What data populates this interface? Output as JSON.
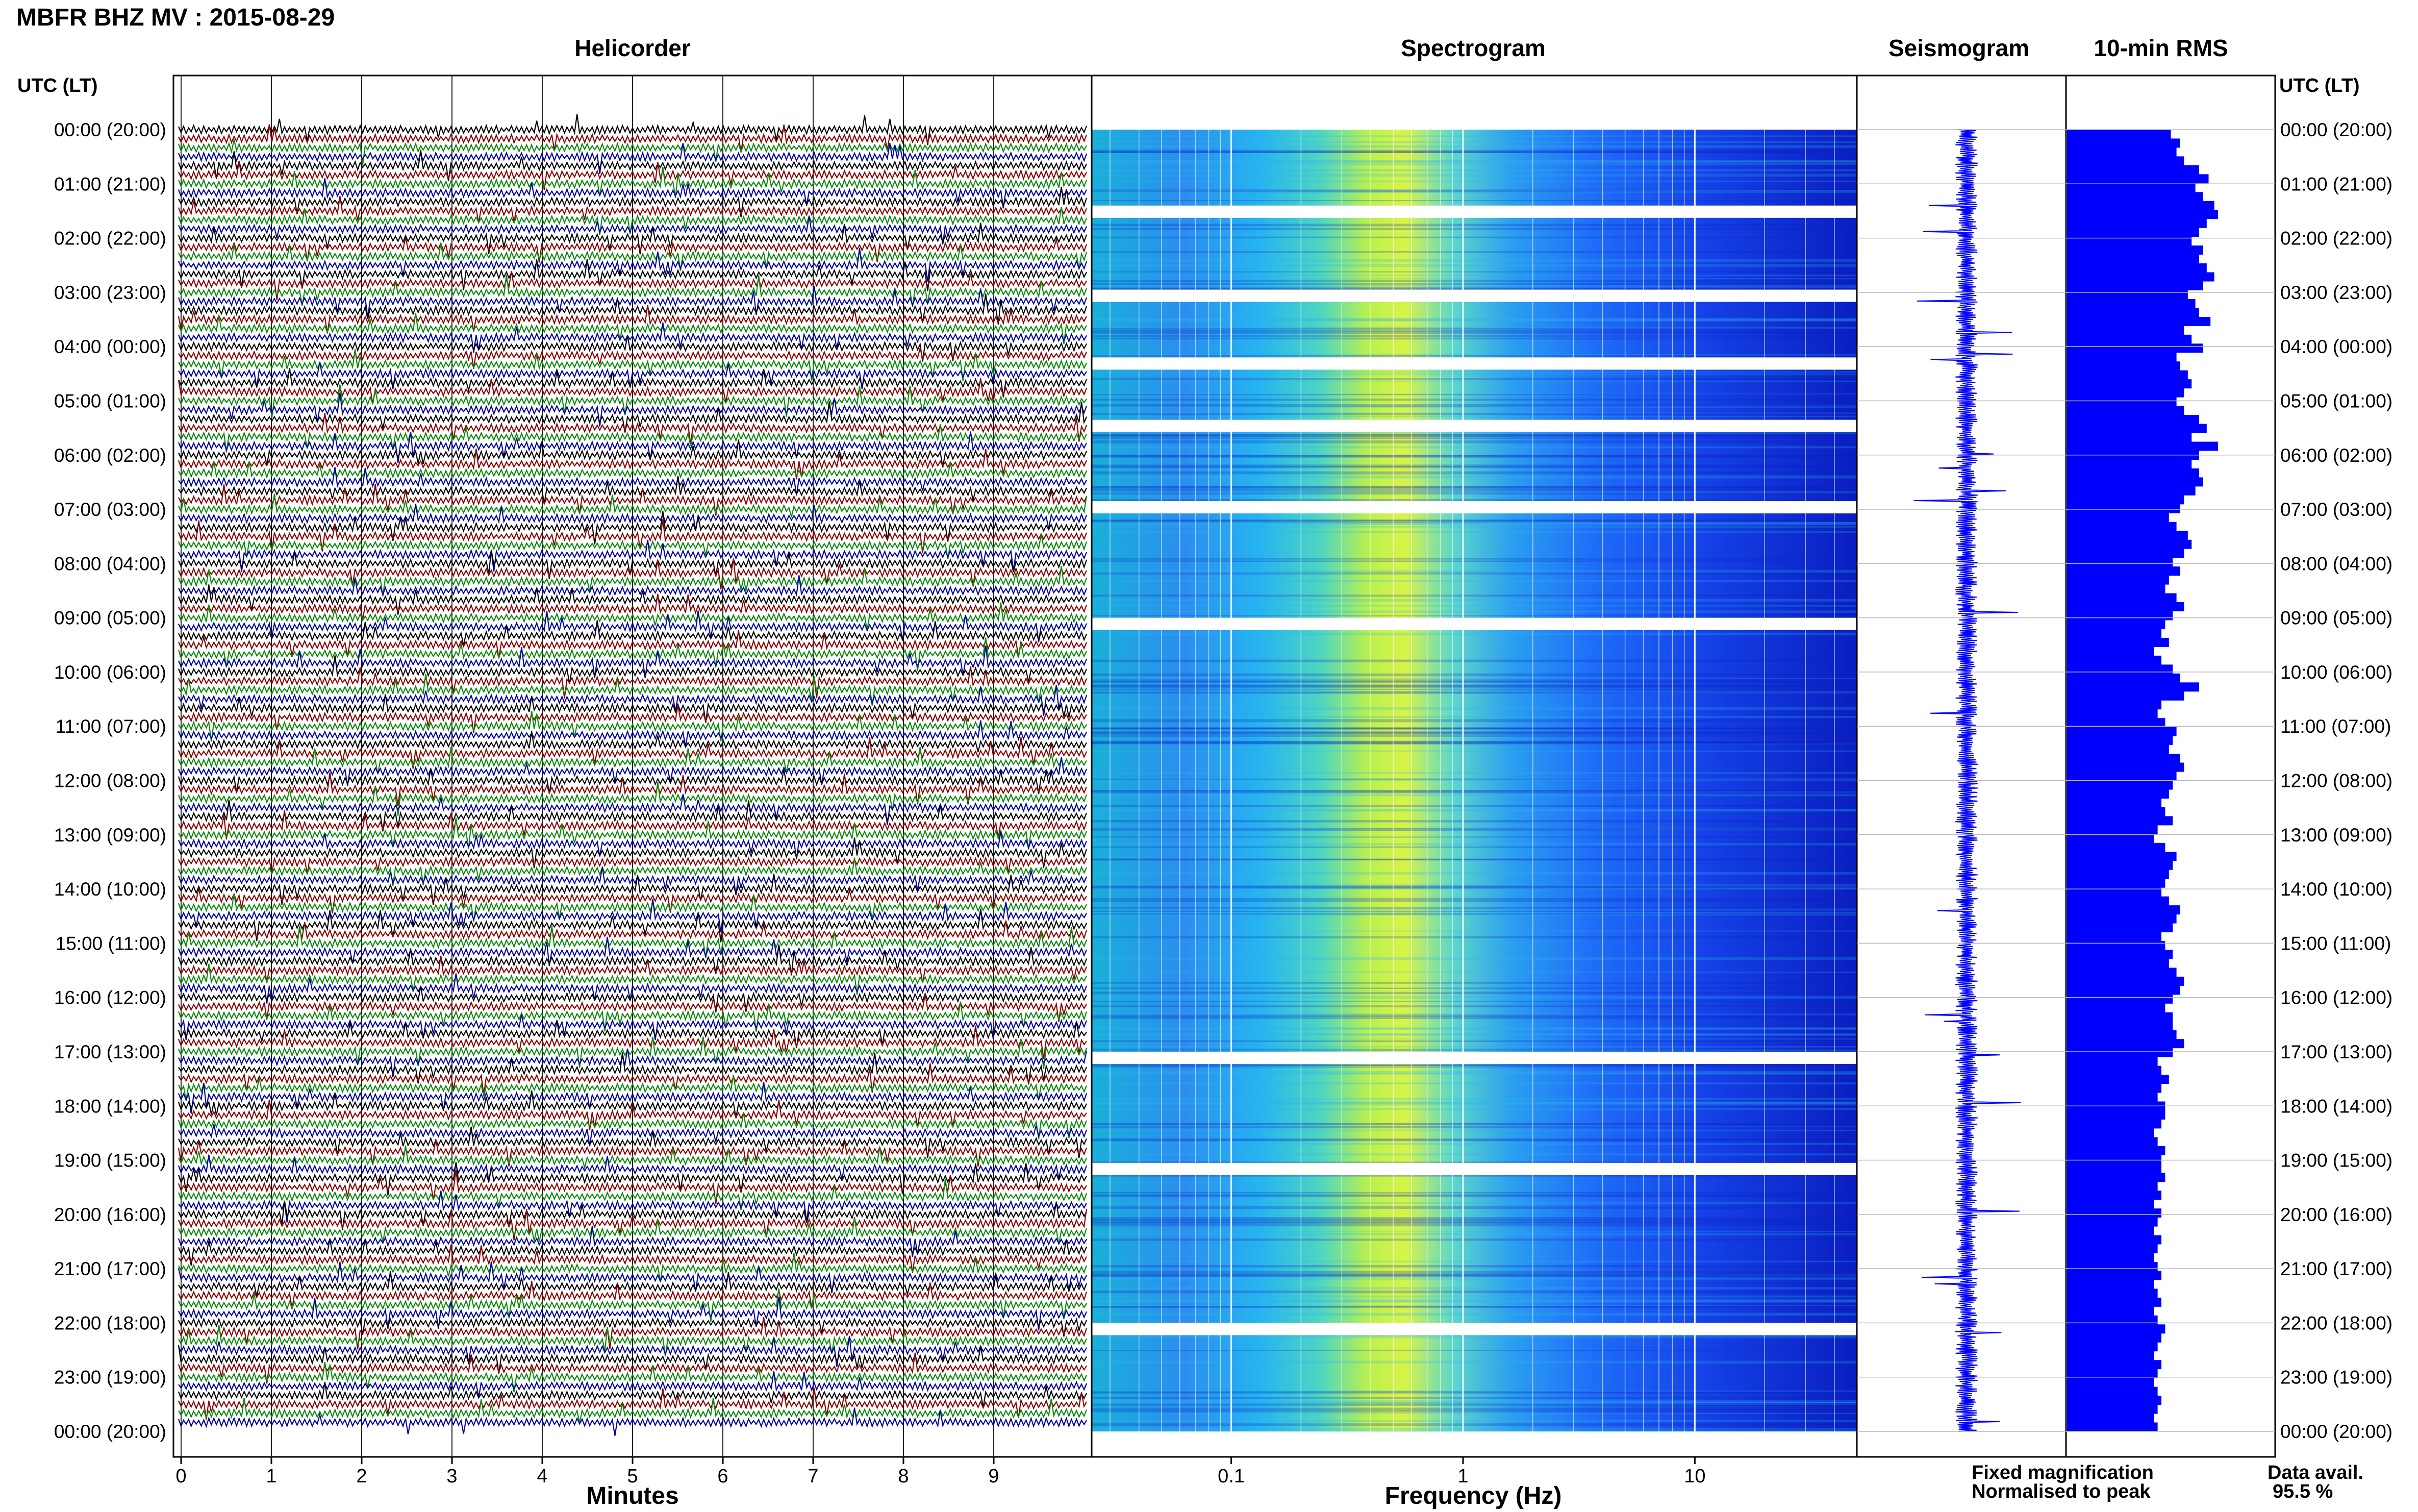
{
  "title": "MBFR BHZ MV : 2015-08-29",
  "panels": {
    "helicorder": "Helicorder",
    "spectrogram": "Spectrogram",
    "seismogram": "Seismogram",
    "rms": "10-min RMS"
  },
  "axis_labels": {
    "time_left": "UTC (LT)",
    "time_right": "UTC (LT)",
    "helicorder_x": "Minutes",
    "spectrogram_x": "Frequency (Hz)"
  },
  "legend": {
    "fixed": "Fixed magnification",
    "normalised": "Normalised to peak",
    "fixed_color": "#1010e0",
    "normalised_color": "#e01010"
  },
  "data_availability": {
    "label": "Data avail.",
    "value": "95.5 %"
  },
  "colors": {
    "trace_cycle": [
      "#000000",
      "#8b0000",
      "#0a8a0a",
      "#0000a0"
    ],
    "rms_bar": "#0000ff",
    "seismogram": "#0000ff"
  },
  "chart_data": [
    {
      "type": "line",
      "name": "helicorder",
      "xlabel": "Minutes",
      "xticks": [
        "0",
        "1",
        "2",
        "3",
        "4",
        "5",
        "6",
        "7",
        "8",
        "9"
      ],
      "xlim": [
        0,
        10
      ],
      "rows_per_hour": 6,
      "time_labels": [
        "00:00 (20:00)",
        "01:00 (21:00)",
        "02:00 (22:00)",
        "03:00 (23:00)",
        "04:00 (00:00)",
        "05:00 (01:00)",
        "06:00 (02:00)",
        "07:00 (03:00)",
        "08:00 (04:00)",
        "09:00 (05:00)",
        "10:00 (06:00)",
        "11:00 (07:00)",
        "12:00 (08:00)",
        "13:00 (09:00)",
        "14:00 (10:00)",
        "15:00 (11:00)",
        "16:00 (12:00)",
        "17:00 (13:00)",
        "18:00 (14:00)",
        "19:00 (15:00)",
        "20:00 (16:00)",
        "21:00 (17:00)",
        "22:00 (18:00)",
        "23:00 (19:00)",
        "00:00 (20:00)"
      ]
    },
    {
      "type": "heatmap",
      "name": "spectrogram",
      "xlabel": "Frequency (Hz)",
      "xscale": "log",
      "xlim": [
        0.025,
        50
      ],
      "xticks": [
        "0.1",
        "1",
        "10"
      ],
      "peak_frequency_hz": 0.35,
      "colormap": [
        "#0000b4",
        "#1e5cff",
        "#2ab4f0",
        "#40e6c8",
        "#c8f03c"
      ],
      "gap_hours": [
        1.4,
        2.95,
        4.2,
        5.35,
        6.85,
        9.0,
        17.0,
        19.05,
        22.0
      ]
    },
    {
      "type": "line",
      "name": "seismogram",
      "orientation": "vertical"
    },
    {
      "type": "bar",
      "name": "10-min RMS",
      "orientation": "horizontal",
      "values": [
        0.55,
        0.6,
        0.58,
        0.62,
        0.7,
        0.75,
        0.68,
        0.72,
        0.78,
        0.8,
        0.74,
        0.7,
        0.66,
        0.72,
        0.7,
        0.74,
        0.78,
        0.72,
        0.64,
        0.68,
        0.7,
        0.76,
        0.62,
        0.66,
        0.72,
        0.58,
        0.6,
        0.64,
        0.66,
        0.62,
        0.58,
        0.62,
        0.7,
        0.74,
        0.66,
        0.8,
        0.7,
        0.66,
        0.7,
        0.72,
        0.68,
        0.62,
        0.6,
        0.54,
        0.58,
        0.64,
        0.66,
        0.62,
        0.56,
        0.6,
        0.54,
        0.52,
        0.58,
        0.62,
        0.56,
        0.52,
        0.5,
        0.54,
        0.46,
        0.5,
        0.56,
        0.6,
        0.7,
        0.62,
        0.5,
        0.48,
        0.52,
        0.58,
        0.56,
        0.54,
        0.6,
        0.62,
        0.58,
        0.56,
        0.54,
        0.5,
        0.52,
        0.56,
        0.48,
        0.46,
        0.52,
        0.58,
        0.56,
        0.54,
        0.52,
        0.5,
        0.54,
        0.6,
        0.58,
        0.56,
        0.5,
        0.52,
        0.56,
        0.54,
        0.58,
        0.62,
        0.6,
        0.56,
        0.52,
        0.56,
        0.56,
        0.58,
        0.62,
        0.56,
        0.48,
        0.5,
        0.54,
        0.5,
        0.48,
        0.52,
        0.52,
        0.5,
        0.46,
        0.48,
        0.52,
        0.5,
        0.5,
        0.52,
        0.48,
        0.5,
        0.46,
        0.5,
        0.48,
        0.46,
        0.5,
        0.48,
        0.46,
        0.48,
        0.5,
        0.46,
        0.48,
        0.5,
        0.46,
        0.48,
        0.52,
        0.5,
        0.48,
        0.46,
        0.5,
        0.48,
        0.46,
        0.48,
        0.5,
        0.48,
        0.46,
        0.48
      ]
    }
  ]
}
